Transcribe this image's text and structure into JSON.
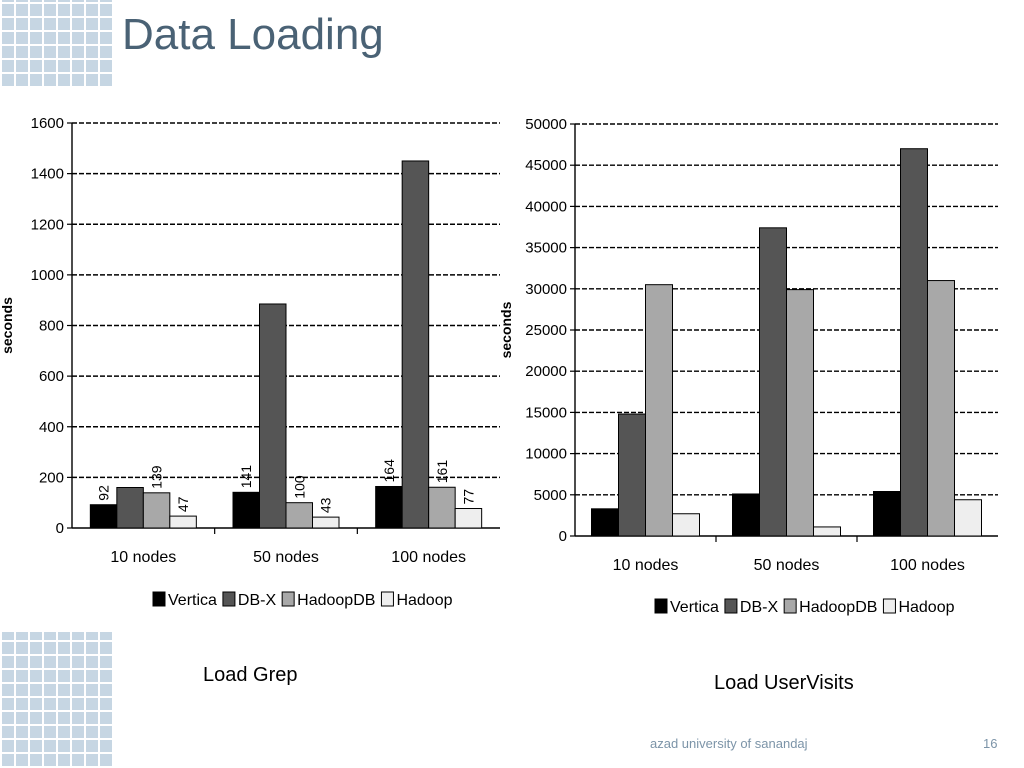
{
  "slide": {
    "title": "Data Loading",
    "caption_left": "Load Grep",
    "caption_right": "Load UserVisits",
    "footer_text": "azad university of sanandaj",
    "page_number": "16"
  },
  "colors": {
    "title": "#4a6275",
    "decoration": "#c6d6e3",
    "Vertica": "#000000",
    "DB-X": "#555555",
    "HadoopDB": "#a8a8a8",
    "Hadoop": "#eeeeee"
  },
  "chart_data": [
    {
      "id": "grep",
      "type": "bar",
      "title": "",
      "xlabel": "",
      "ylabel": "seconds",
      "categories": [
        "10 nodes",
        "50 nodes",
        "100 nodes"
      ],
      "ylim": [
        0,
        1600
      ],
      "yticks": [
        0,
        200,
        400,
        600,
        800,
        1000,
        1200,
        1400,
        1600
      ],
      "grid": true,
      "legend_position": "bottom",
      "series": [
        {
          "name": "Vertica",
          "values": [
            92,
            141,
            164
          ],
          "labels": [
            "92",
            "141",
            "164"
          ]
        },
        {
          "name": "DB-X",
          "values": [
            160,
            885,
            1450
          ],
          "labels": [
            null,
            null,
            null
          ]
        },
        {
          "name": "HadoopDB",
          "values": [
            139,
            100,
            161
          ],
          "labels": [
            "139",
            "100",
            "161"
          ]
        },
        {
          "name": "Hadoop",
          "values": [
            47,
            43,
            77
          ],
          "labels": [
            "47",
            "43",
            "77"
          ]
        }
      ]
    },
    {
      "id": "uservisits",
      "type": "bar",
      "title": "",
      "xlabel": "",
      "ylabel": "seconds",
      "categories": [
        "10 nodes",
        "50 nodes",
        "100 nodes"
      ],
      "ylim": [
        0,
        50000
      ],
      "yticks": [
        0,
        5000,
        10000,
        15000,
        20000,
        25000,
        30000,
        35000,
        40000,
        45000,
        50000
      ],
      "grid": true,
      "legend_position": "bottom",
      "series": [
        {
          "name": "Vertica",
          "values": [
            3300,
            5100,
            5400
          ],
          "labels": [
            null,
            null,
            null
          ]
        },
        {
          "name": "DB-X",
          "values": [
            14800,
            37400,
            47000
          ],
          "labels": [
            null,
            null,
            null
          ]
        },
        {
          "name": "HadoopDB",
          "values": [
            30500,
            29900,
            31000
          ],
          "labels": [
            null,
            null,
            null
          ]
        },
        {
          "name": "Hadoop",
          "values": [
            2700,
            1100,
            4400
          ],
          "labels": [
            null,
            null,
            null
          ]
        }
      ]
    }
  ]
}
